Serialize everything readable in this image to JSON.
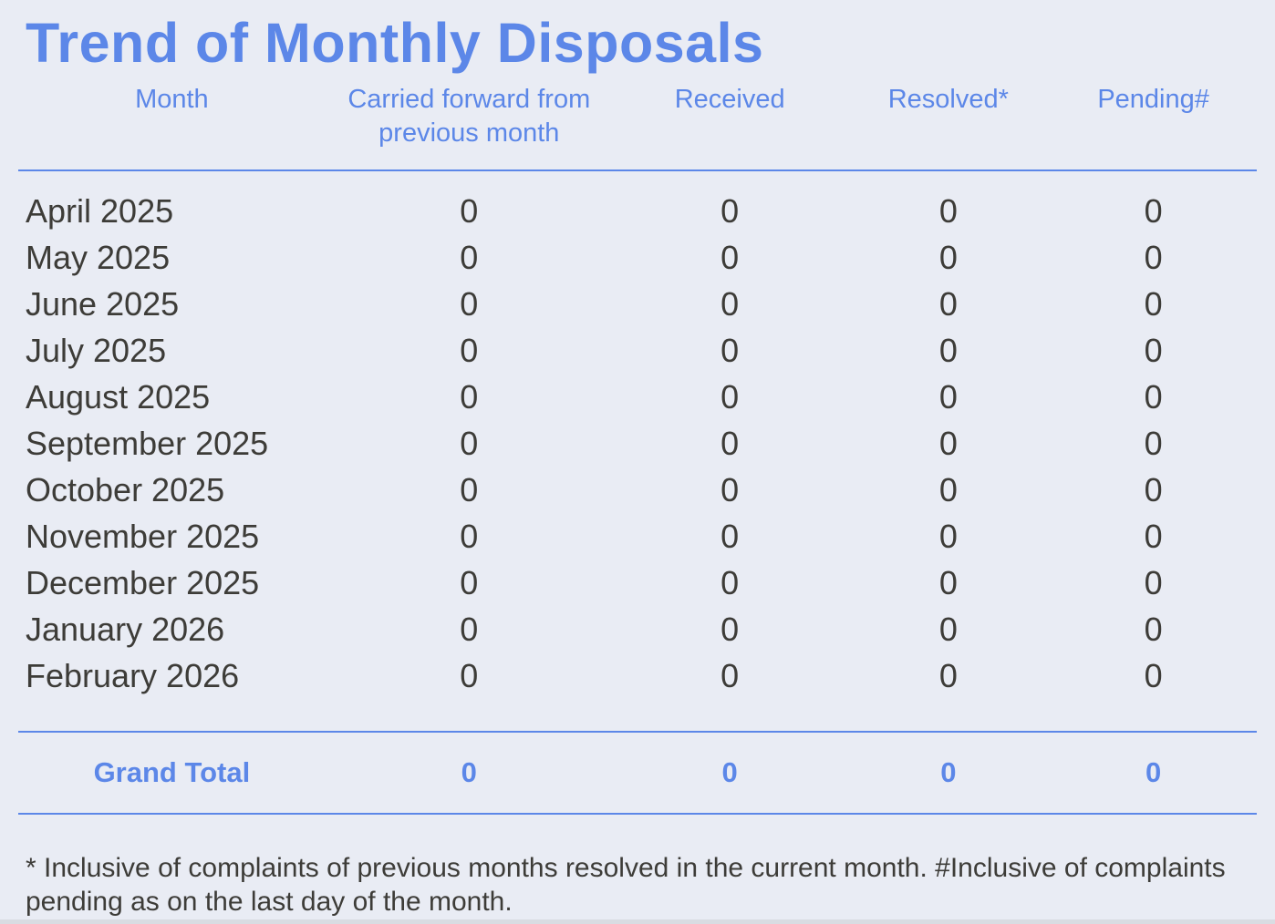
{
  "page": {
    "title": "Trend of Monthly Disposals",
    "background_color": "#e9ecf4",
    "accent_color": "#5c87e8",
    "body_text_color": "#3d3c38",
    "footnote": "* Inclusive of complaints of previous months resolved in the current month. #Inclusive of complaints pending as on the last day of the month."
  },
  "table": {
    "columns": [
      "Month",
      "Carried forward from previous month",
      "Received",
      "Resolved*",
      "Pending#"
    ],
    "rows": [
      [
        "April 2025",
        "0",
        "0",
        "0",
        "0"
      ],
      [
        "May 2025",
        "0",
        "0",
        "0",
        "0"
      ],
      [
        "June 2025",
        "0",
        "0",
        "0",
        "0"
      ],
      [
        "July 2025",
        "0",
        "0",
        "0",
        "0"
      ],
      [
        "August 2025",
        "0",
        "0",
        "0",
        "0"
      ],
      [
        "September 2025",
        "0",
        "0",
        "0",
        "0"
      ],
      [
        "October 2025",
        "0",
        "0",
        "0",
        "0"
      ],
      [
        "November 2025",
        "0",
        "0",
        "0",
        "0"
      ],
      [
        "December 2025",
        "0",
        "0",
        "0",
        "0"
      ],
      [
        "January 2026",
        "0",
        "0",
        "0",
        "0"
      ],
      [
        "February 2026",
        "0",
        "0",
        "0",
        "0"
      ]
    ],
    "grand_total": {
      "label": "Grand Total",
      "values": [
        "0",
        "0",
        "0",
        "0"
      ]
    }
  }
}
